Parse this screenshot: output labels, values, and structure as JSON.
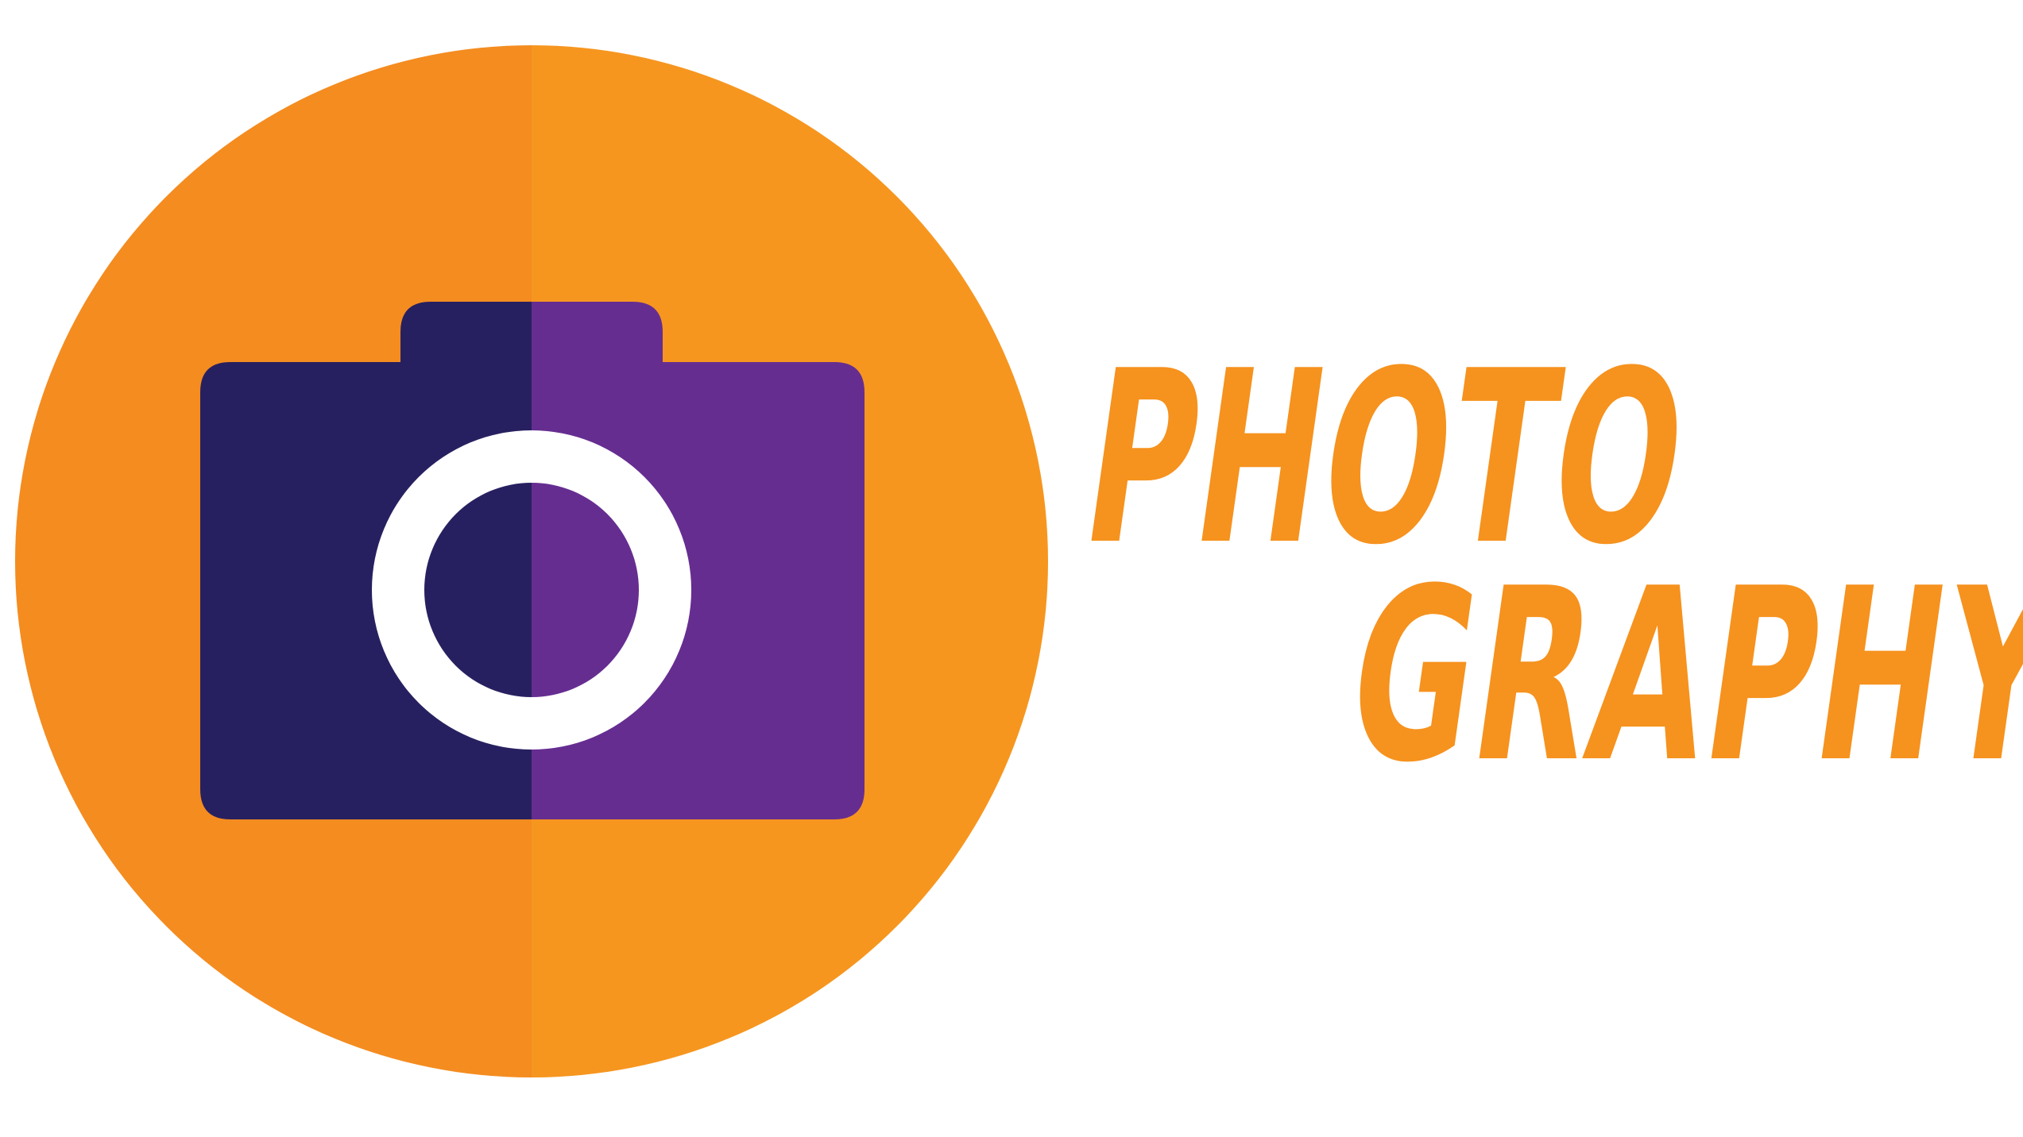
{
  "logo": {
    "text_line_1": "PHOTO",
    "text_line_2": "GRAPHY",
    "icon": "camera-icon",
    "colors": {
      "circle_left": "#f48c20",
      "circle_right": "#f6961f",
      "camera_left": "#272060",
      "camera_right": "#662d91",
      "lens_ring": "#ffffff",
      "text": "#f6921e",
      "background": "#ffffff"
    }
  }
}
